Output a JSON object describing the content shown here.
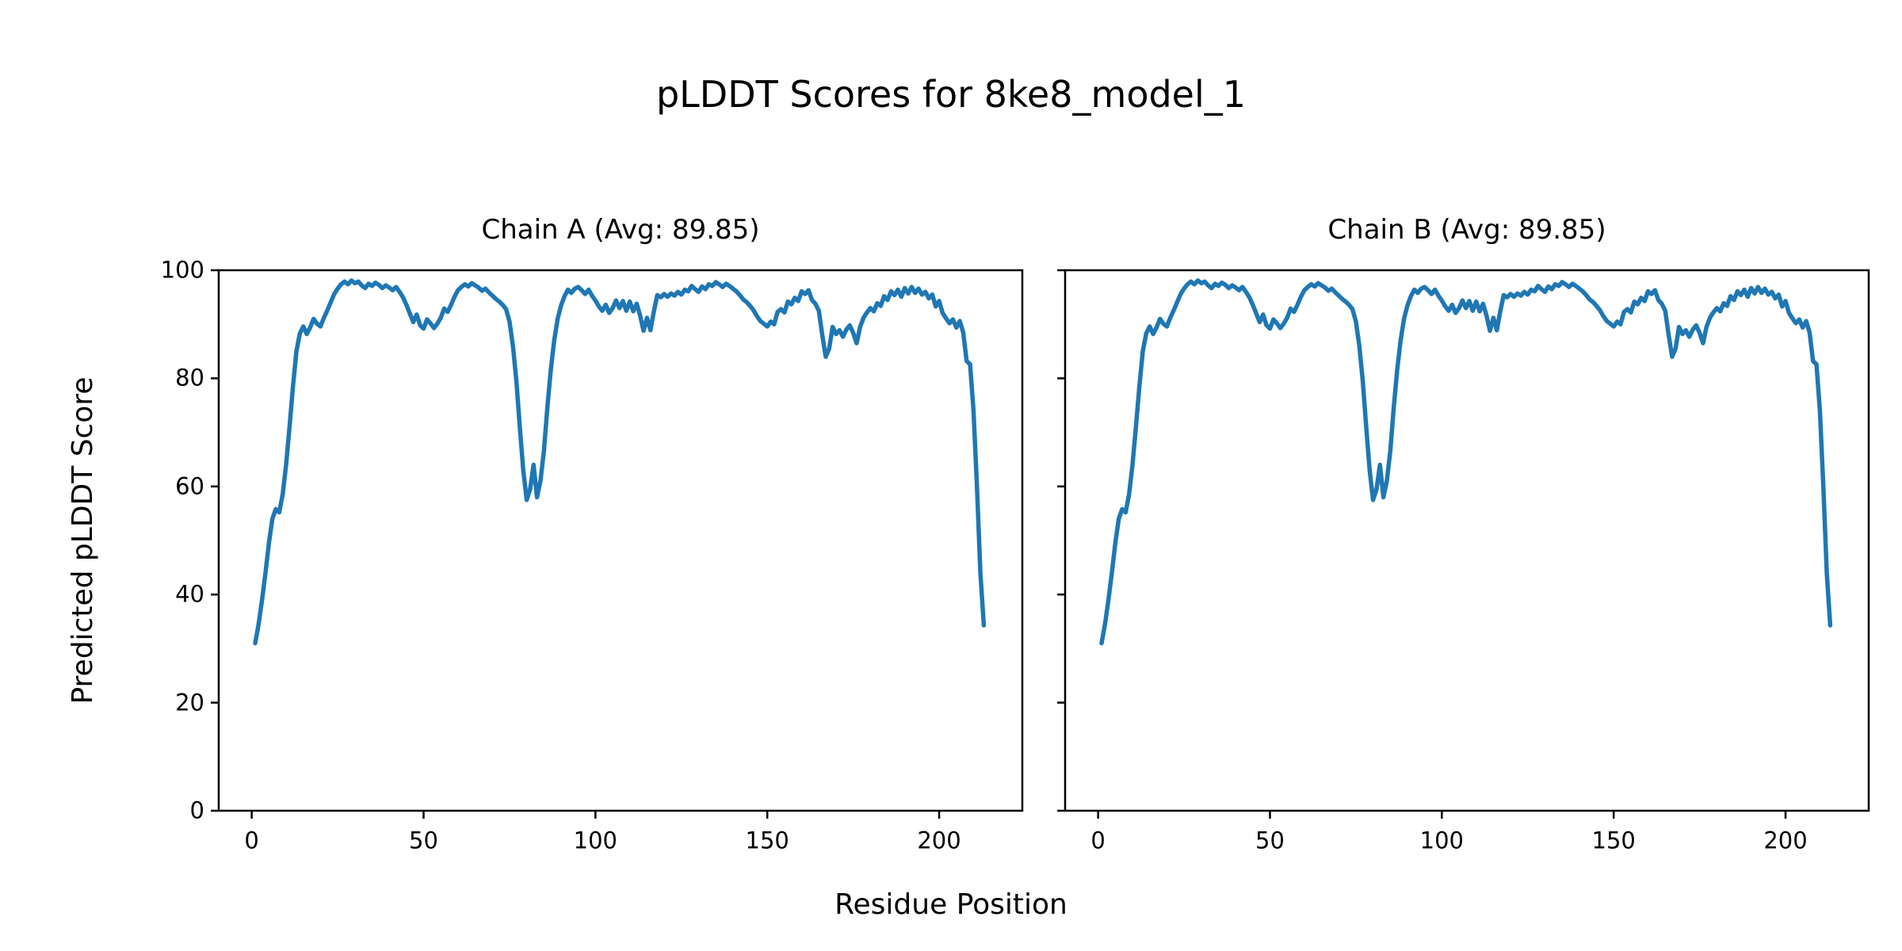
{
  "figure": {
    "title": "pLDDT Scores for 8ke8_model_1",
    "xlabel": "Residue Position",
    "ylabel": "Predicted pLDDT Score",
    "background_color": "#ffffff",
    "line_color": "#1f77b4",
    "axis_color": "#000000"
  },
  "chart_data": [
    {
      "type": "line",
      "title": "Chain A (Avg: 89.85)",
      "avg": 89.85,
      "xlabel": "Residue Position",
      "ylabel": "Predicted pLDDT Score",
      "xlim": [
        -9.6,
        224.2
      ],
      "ylim": [
        0,
        100
      ],
      "x_ticks": [
        0,
        50,
        100,
        150,
        200
      ],
      "y_ticks": [
        0,
        20,
        40,
        60,
        80,
        100
      ],
      "show_y_tick_labels": true,
      "grid": false,
      "legend": null,
      "series": [
        {
          "name": "Chain A pLDDT",
          "color": "#1f77b4",
          "x_start": 1,
          "values": [
            31.0,
            34.5,
            39.0,
            44.0,
            49.5,
            54.0,
            55.8,
            55.2,
            58.5,
            64.0,
            71.0,
            78.5,
            85.0,
            88.3,
            89.6,
            88.2,
            89.4,
            91.0,
            90.1,
            89.6,
            91.2,
            92.6,
            94.1,
            95.6,
            96.6,
            97.4,
            97.9,
            97.4,
            98.1,
            97.6,
            97.9,
            97.2,
            96.7,
            97.5,
            97.1,
            97.7,
            97.3,
            96.7,
            97.2,
            96.8,
            96.3,
            96.9,
            96.0,
            95.0,
            93.6,
            92.0,
            90.4,
            91.8,
            89.8,
            89.2,
            90.9,
            90.2,
            89.3,
            90.1,
            91.2,
            92.9,
            92.3,
            93.6,
            95.1,
            96.3,
            96.9,
            97.4,
            97.0,
            97.6,
            97.2,
            96.8,
            96.2,
            96.6,
            95.9,
            95.3,
            94.7,
            94.2,
            93.6,
            92.8,
            90.5,
            86.0,
            79.5,
            71.0,
            63.0,
            57.5,
            59.5,
            64.0,
            58.0,
            61.0,
            66.5,
            74.5,
            81.5,
            87.0,
            91.0,
            93.5,
            95.2,
            96.4,
            95.8,
            96.6,
            96.9,
            96.3,
            95.6,
            96.4,
            95.3,
            94.4,
            93.3,
            92.5,
            93.6,
            92.1,
            93.0,
            94.4,
            93.0,
            94.3,
            92.5,
            94.2,
            92.4,
            93.8,
            91.6,
            88.8,
            91.2,
            88.9,
            92.4,
            95.4,
            95.0,
            95.6,
            95.1,
            95.7,
            95.3,
            96.0,
            95.5,
            96.4,
            96.1,
            97.1,
            96.5,
            96.0,
            97.0,
            96.5,
            97.4,
            97.1,
            97.8,
            97.4,
            96.9,
            97.5,
            97.1,
            96.6,
            96.1,
            95.4,
            94.6,
            94.1,
            93.4,
            92.6,
            91.5,
            90.6,
            90.1,
            89.6,
            90.5,
            90.0,
            92.3,
            92.8,
            92.2,
            94.2,
            93.7,
            94.9,
            94.3,
            96.1,
            95.6,
            96.3,
            94.5,
            93.8,
            92.5,
            88.0,
            84.0,
            85.5,
            89.5,
            88.2,
            88.9,
            87.7,
            89.0,
            89.8,
            88.4,
            86.5,
            89.5,
            91.2,
            92.2,
            93.0,
            92.4,
            93.9,
            93.4,
            95.2,
            94.5,
            96.1,
            95.4,
            96.4,
            95.1,
            96.7,
            95.7,
            96.9,
            95.8,
            96.6,
            95.5,
            96.0,
            94.8,
            95.5,
            93.3,
            94.3,
            92.1,
            91.1,
            90.2,
            90.9,
            89.4,
            90.6,
            88.5,
            83.2,
            82.6,
            74.0,
            60.0,
            44.0,
            34.3
          ]
        }
      ]
    },
    {
      "type": "line",
      "title": "Chain B (Avg: 89.85)",
      "avg": 89.85,
      "xlabel": "Residue Position",
      "ylabel": "Predicted pLDDT Score",
      "xlim": [
        -9.6,
        224.2
      ],
      "ylim": [
        0,
        100
      ],
      "x_ticks": [
        0,
        50,
        100,
        150,
        200
      ],
      "y_ticks": [
        0,
        20,
        40,
        60,
        80,
        100
      ],
      "show_y_tick_labels": false,
      "grid": false,
      "legend": null,
      "series": [
        {
          "name": "Chain B pLDDT",
          "color": "#1f77b4",
          "x_start": 1,
          "values": [
            31.0,
            34.5,
            39.0,
            44.0,
            49.5,
            54.0,
            55.8,
            55.2,
            58.5,
            64.0,
            71.0,
            78.5,
            85.0,
            88.3,
            89.6,
            88.2,
            89.4,
            91.0,
            90.1,
            89.6,
            91.2,
            92.6,
            94.1,
            95.6,
            96.6,
            97.4,
            97.9,
            97.4,
            98.1,
            97.6,
            97.9,
            97.2,
            96.7,
            97.5,
            97.1,
            97.7,
            97.3,
            96.7,
            97.2,
            96.8,
            96.3,
            96.9,
            96.0,
            95.0,
            93.6,
            92.0,
            90.4,
            91.8,
            89.8,
            89.2,
            90.9,
            90.2,
            89.3,
            90.1,
            91.2,
            92.9,
            92.3,
            93.6,
            95.1,
            96.3,
            96.9,
            97.4,
            97.0,
            97.6,
            97.2,
            96.8,
            96.2,
            96.6,
            95.9,
            95.3,
            94.7,
            94.2,
            93.6,
            92.8,
            90.5,
            86.0,
            79.5,
            71.0,
            63.0,
            57.5,
            59.5,
            64.0,
            58.0,
            61.0,
            66.5,
            74.5,
            81.5,
            87.0,
            91.0,
            93.5,
            95.2,
            96.4,
            95.8,
            96.6,
            96.9,
            96.3,
            95.6,
            96.4,
            95.3,
            94.4,
            93.3,
            92.5,
            93.6,
            92.1,
            93.0,
            94.4,
            93.0,
            94.3,
            92.5,
            94.2,
            92.4,
            93.8,
            91.6,
            88.8,
            91.2,
            88.9,
            92.4,
            95.4,
            95.0,
            95.6,
            95.1,
            95.7,
            95.3,
            96.0,
            95.5,
            96.4,
            96.1,
            97.1,
            96.5,
            96.0,
            97.0,
            96.5,
            97.4,
            97.1,
            97.8,
            97.4,
            96.9,
            97.5,
            97.1,
            96.6,
            96.1,
            95.4,
            94.6,
            94.1,
            93.4,
            92.6,
            91.5,
            90.6,
            90.1,
            89.6,
            90.5,
            90.0,
            92.3,
            92.8,
            92.2,
            94.2,
            93.7,
            94.9,
            94.3,
            96.1,
            95.6,
            96.3,
            94.5,
            93.8,
            92.5,
            88.0,
            84.0,
            85.5,
            89.5,
            88.2,
            88.9,
            87.7,
            89.0,
            89.8,
            88.4,
            86.5,
            89.5,
            91.2,
            92.2,
            93.0,
            92.4,
            93.9,
            93.4,
            95.2,
            94.5,
            96.1,
            95.4,
            96.4,
            95.1,
            96.7,
            95.7,
            96.9,
            95.8,
            96.6,
            95.5,
            96.0,
            94.8,
            95.5,
            93.3,
            94.3,
            92.1,
            91.1,
            90.2,
            90.9,
            89.4,
            90.6,
            88.5,
            83.2,
            82.6,
            74.0,
            60.0,
            44.0,
            34.3
          ]
        }
      ]
    }
  ]
}
